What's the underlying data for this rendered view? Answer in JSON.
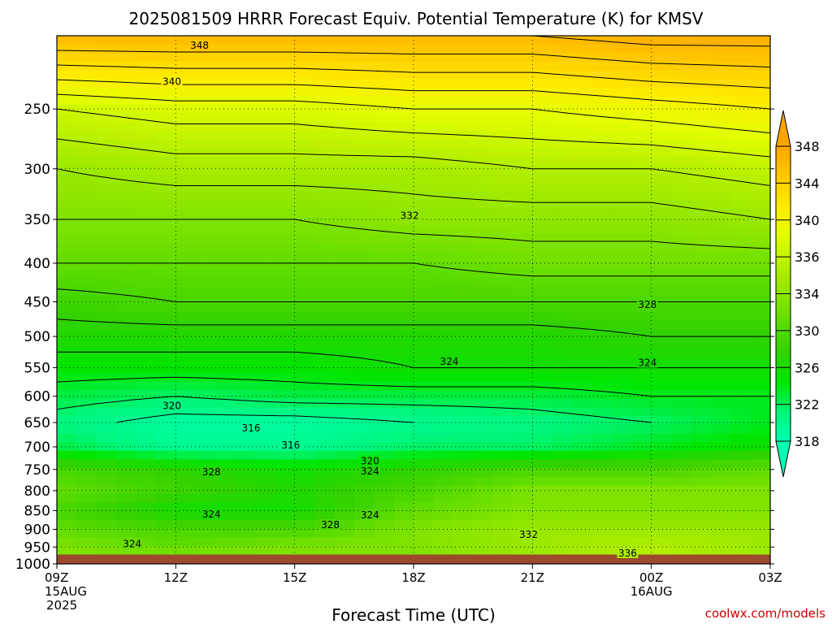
{
  "chart_data": {
    "type": "heatmap",
    "title": "2025081509 HRRR Forecast Equiv. Potential Temperature (K) for KMSV",
    "xlabel": "Forecast Time (UTC)",
    "ylabel": "",
    "credit": "coolwx.com/models",
    "x_ticks": [
      {
        "label": "09Z",
        "sub1": "15AUG",
        "sub2": "2025"
      },
      {
        "label": "12Z",
        "sub1": "",
        "sub2": ""
      },
      {
        "label": "15Z",
        "sub1": "",
        "sub2": ""
      },
      {
        "label": "18Z",
        "sub1": "",
        "sub2": ""
      },
      {
        "label": "21Z",
        "sub1": "",
        "sub2": ""
      },
      {
        "label": "00Z",
        "sub1": "16AUG",
        "sub2": ""
      },
      {
        "label": "03Z",
        "sub1": "",
        "sub2": ""
      }
    ],
    "x_hours": [
      0,
      3,
      6,
      9,
      12,
      15,
      18
    ],
    "y_ticks": [
      250,
      300,
      350,
      400,
      450,
      500,
      550,
      600,
      650,
      700,
      750,
      800,
      850,
      900,
      950,
      1000
    ],
    "y_scale": "log",
    "ylim": [
      1000,
      200
    ],
    "surface_pressure": 972,
    "contour_interval": 2,
    "colorbar": {
      "ticks": [
        348,
        344,
        340,
        336,
        334,
        330,
        326,
        322,
        318
      ],
      "colors": [
        "#ffa500",
        "#ffc800",
        "#ffea00",
        "#e5ff00",
        "#b8f000",
        "#8ee600",
        "#5cdc00",
        "#32d200",
        "#00e600",
        "#00f57a",
        "#00ffb0"
      ]
    },
    "grid": true,
    "profiles": {
      "pressure_levels": [
        200,
        250,
        300,
        350,
        400,
        450,
        500,
        550,
        600,
        650,
        700,
        750,
        800,
        850,
        900,
        950,
        972
      ],
      "values_by_hour": [
        {
          "hour": 0,
          "theta_e": [
            348,
            338,
            334,
            332,
            330,
            327,
            325,
            323,
            321,
            319,
            321,
            328,
            330,
            328,
            330,
            332,
            332
          ]
        },
        {
          "hour": 3,
          "theta_e": [
            348,
            339,
            335,
            332,
            330,
            328,
            325,
            323,
            320,
            317,
            318,
            326,
            327,
            324,
            328,
            330,
            332
          ]
        },
        {
          "hour": 6,
          "theta_e": [
            348,
            339,
            335,
            332,
            330,
            328,
            325,
            323,
            321,
            317,
            318,
            324,
            325,
            324,
            328,
            332,
            332
          ]
        },
        {
          "hour": 9,
          "theta_e": [
            348,
            340,
            335,
            333,
            330,
            328,
            325,
            324,
            321,
            318,
            320,
            326,
            328,
            330,
            332,
            332,
            332
          ]
        },
        {
          "hour": 12,
          "theta_e": [
            348,
            340,
            336,
            333,
            331,
            328,
            325,
            324,
            321,
            319,
            320,
            328,
            332,
            332,
            334,
            334,
            334
          ]
        },
        {
          "hour": 15,
          "theta_e": [
            349,
            341,
            336,
            333,
            331,
            328,
            326,
            324,
            322,
            320,
            322,
            328,
            332,
            332,
            334,
            336,
            336
          ]
        },
        {
          "hour": 18,
          "theta_e": [
            349,
            342,
            337,
            334,
            331,
            328,
            326,
            324,
            322,
            322,
            324,
            330,
            332,
            332,
            334,
            334,
            334
          ]
        }
      ]
    },
    "contour_labels": [
      {
        "text": "348",
        "hour": 3.6,
        "p": 206
      },
      {
        "text": "340",
        "hour": 2.9,
        "p": 230
      },
      {
        "text": "332",
        "hour": 8.9,
        "p": 346
      },
      {
        "text": "328",
        "hour": 14.9,
        "p": 454
      },
      {
        "text": "324",
        "hour": 9.9,
        "p": 540
      },
      {
        "text": "324",
        "hour": 14.9,
        "p": 542
      },
      {
        "text": "320",
        "hour": 2.9,
        "p": 618
      },
      {
        "text": "316",
        "hour": 4.9,
        "p": 661
      },
      {
        "text": "316",
        "hour": 5.9,
        "p": 697
      },
      {
        "text": "320",
        "hour": 7.9,
        "p": 731
      },
      {
        "text": "324",
        "hour": 7.9,
        "p": 754
      },
      {
        "text": "328",
        "hour": 3.9,
        "p": 756
      },
      {
        "text": "324",
        "hour": 3.9,
        "p": 860
      },
      {
        "text": "328",
        "hour": 6.9,
        "p": 888
      },
      {
        "text": "324",
        "hour": 7.9,
        "p": 862
      },
      {
        "text": "324",
        "hour": 1.9,
        "p": 941
      },
      {
        "text": "332",
        "hour": 11.9,
        "p": 915
      },
      {
        "text": "336",
        "hour": 14.4,
        "p": 968
      }
    ]
  }
}
